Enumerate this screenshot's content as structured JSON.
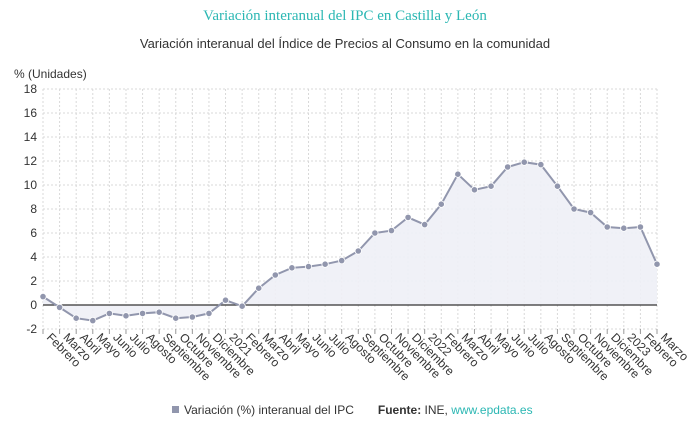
{
  "header": {
    "title": "Variación interanual del IPC en Castilla y León",
    "subtitle": "Variación interanual del Índice de Precios al Consumo en la comunidad",
    "y_unit": "% (Unidades)"
  },
  "legend": {
    "series_label": "Variación (%) interanual del IPC",
    "source_label": "Fuente:",
    "source_name": "INE, ",
    "source_link": "www.epdata.es"
  },
  "colors": {
    "series": "#9196ad",
    "area": "#eeeff6",
    "title": "#2bb7b3",
    "grid": "#d9d9d9",
    "zero_line": "#333333"
  },
  "chart_data": {
    "type": "area",
    "title": "Variación interanual del IPC en Castilla y León",
    "subtitle": "Variación interanual del Índice de Precios al Consumo en la comunidad",
    "ylabel": "% (Unidades)",
    "xlabel": "",
    "ylim": [
      -2,
      18
    ],
    "yticks": [
      -2,
      0,
      2,
      4,
      6,
      8,
      10,
      12,
      14,
      16,
      18
    ],
    "grid": true,
    "legend_position": "bottom",
    "x": [
      "Febrero",
      "Marzo",
      "Abril",
      "Mayo",
      "Junio",
      "Julio",
      "Agosto",
      "Septiembre",
      "Octubre",
      "Noviembre",
      "Diciembre",
      "2021",
      "Febrero",
      "Marzo",
      "Abril",
      "Mayo",
      "Junio",
      "Julio",
      "Agosto",
      "Septiembre",
      "Octubre",
      "Noviembre",
      "Diciembre",
      "2022",
      "Febrero",
      "Marzo",
      "Abril",
      "Mayo",
      "Junio",
      "Julio",
      "Agosto",
      "Septiembre",
      "Octubre",
      "Noviembre",
      "Diciembre",
      "2023",
      "Febrero",
      "Marzo"
    ],
    "series": [
      {
        "name": "Variación (%) interanual del IPC",
        "values": [
          0.7,
          -0.2,
          -1.1,
          -1.3,
          -0.7,
          -0.9,
          -0.7,
          -0.6,
          -1.1,
          -1.0,
          -0.7,
          0.4,
          -0.1,
          1.4,
          2.5,
          3.1,
          3.2,
          3.4,
          3.7,
          4.5,
          6.0,
          6.2,
          7.3,
          6.7,
          8.4,
          10.9,
          9.6,
          9.9,
          11.5,
          11.9,
          11.7,
          9.9,
          8.0,
          7.7,
          6.5,
          6.4,
          6.5,
          3.4
        ]
      }
    ]
  }
}
